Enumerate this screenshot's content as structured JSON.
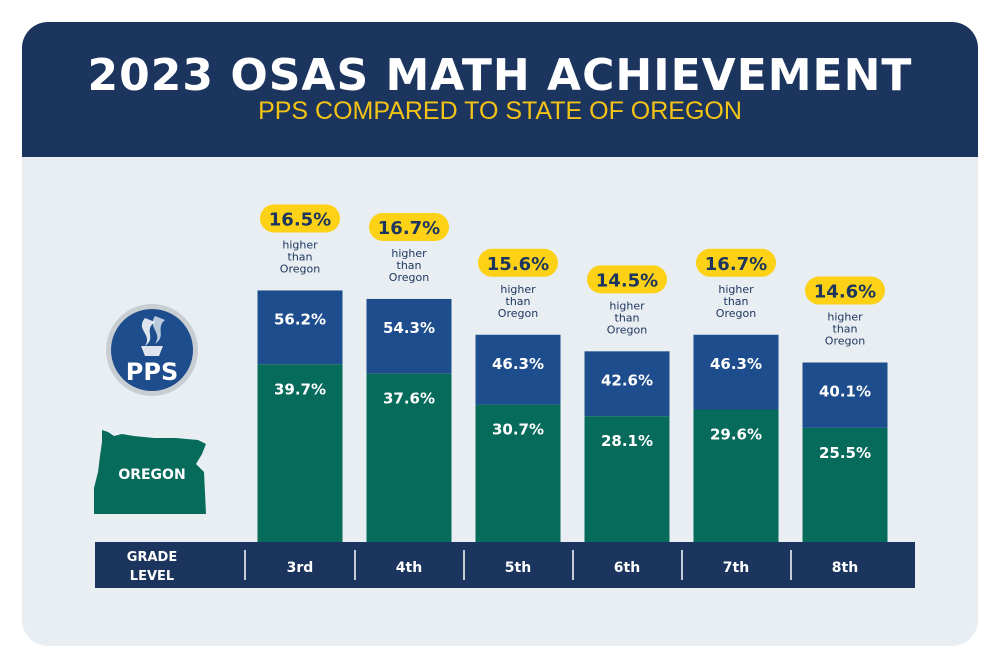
{
  "header": {
    "title": "2023 OSAS MATH ACHIEVEMENT",
    "subtitle": "PPS COMPARED TO STATE OF OREGON"
  },
  "legend": {
    "pps_label": "PPS",
    "oregon_label": "OREGON"
  },
  "axis": {
    "label_line1": "GRADE",
    "label_line2": "LEVEL"
  },
  "comparison_text": [
    "higher",
    "than",
    "Oregon"
  ],
  "colors": {
    "header": "#1c355e",
    "pps": "#1d4d8c",
    "oregon": "#076b5c",
    "badge": "#fcd116",
    "axis_bar": "#1c355e",
    "background": "#e8eef2"
  },
  "chart_data": {
    "type": "bar",
    "title": "2023 OSAS MATH ACHIEVEMENT",
    "subtitle": "PPS COMPARED TO STATE OF OREGON",
    "xlabel": "GRADE LEVEL",
    "ylabel": "",
    "categories": [
      "3rd",
      "4th",
      "5th",
      "6th",
      "7th",
      "8th"
    ],
    "series": [
      {
        "name": "PPS",
        "values": [
          56.2,
          54.3,
          46.3,
          42.6,
          46.3,
          40.1
        ],
        "labels": [
          "56.2%",
          "54.3%",
          "46.3%",
          "42.6%",
          "46.3%",
          "40.1%"
        ]
      },
      {
        "name": "OREGON",
        "values": [
          39.7,
          37.6,
          30.7,
          28.1,
          29.6,
          25.5
        ],
        "labels": [
          "39.7%",
          "37.6%",
          "30.7%",
          "28.1%",
          "29.6%",
          "25.5%"
        ]
      }
    ],
    "differences": [
      "16.5%",
      "16.7%",
      "15.6%",
      "14.5%",
      "16.7%",
      "14.6%"
    ],
    "ylim": [
      0,
      80
    ],
    "grid": false
  }
}
